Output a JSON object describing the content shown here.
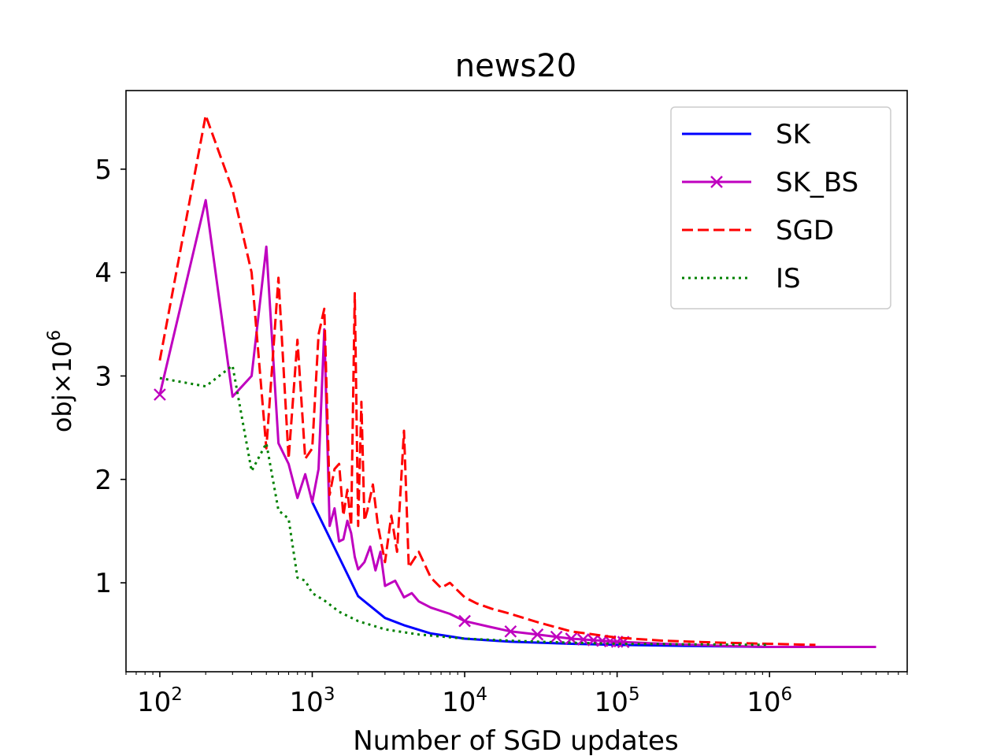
{
  "chart_data": {
    "type": "line",
    "title": "news20",
    "xlabel": "Number of SGD updates",
    "ylabel": "obj×10",
    "ylabel_exponent": "6",
    "xscale": "log",
    "xlim": [
      60,
      8000000
    ],
    "ylim": [
      0.14,
      5.76
    ],
    "xticks": [
      {
        "value": 100,
        "base": "10",
        "exp": "2"
      },
      {
        "value": 1000,
        "base": "10",
        "exp": "3"
      },
      {
        "value": 10000,
        "base": "10",
        "exp": "4"
      },
      {
        "value": 100000,
        "base": "10",
        "exp": "5"
      },
      {
        "value": 1000000,
        "base": "10",
        "exp": "6"
      }
    ],
    "yticks": [
      {
        "value": 1,
        "label": "1"
      },
      {
        "value": 2,
        "label": "2"
      },
      {
        "value": 3,
        "label": "3"
      },
      {
        "value": 4,
        "label": "4"
      },
      {
        "value": 5,
        "label": "5"
      }
    ],
    "legend_position": "top-right",
    "series": [
      {
        "name": "SK",
        "color": "#0000ff",
        "style": "solid",
        "marker": "none",
        "x": [
          1000,
          2000,
          3000,
          4000,
          6000,
          10000,
          20000,
          50000,
          100000,
          300000,
          1000000,
          5000000
        ],
        "y": [
          1.78,
          0.87,
          0.66,
          0.59,
          0.51,
          0.46,
          0.43,
          0.41,
          0.4,
          0.39,
          0.38,
          0.38
        ]
      },
      {
        "name": "SK_BS",
        "color": "#bf00bf",
        "style": "solid",
        "marker": "x",
        "marker_x": [
          100,
          10000,
          20000,
          30000,
          40000,
          50000,
          60000,
          70000,
          80000,
          90000,
          100000,
          110000
        ],
        "x": [
          100,
          200,
          300,
          400,
          500,
          600,
          700,
          800,
          900,
          1000,
          1100,
          1200,
          1300,
          1400,
          1500,
          1600,
          1700,
          1800,
          1900,
          2000,
          2200,
          2400,
          2600,
          2800,
          3000,
          3500,
          4000,
          4500,
          5000,
          6000,
          8000,
          10000,
          15000,
          20000,
          30000,
          50000,
          100000,
          200000,
          500000,
          1000000,
          2000000,
          5000000
        ],
        "y": [
          2.82,
          4.7,
          2.8,
          3.0,
          4.25,
          2.35,
          2.15,
          1.82,
          2.05,
          1.78,
          2.1,
          3.45,
          1.55,
          1.72,
          1.4,
          1.42,
          1.6,
          1.48,
          1.25,
          1.13,
          1.2,
          1.35,
          1.12,
          1.3,
          0.97,
          1.02,
          0.86,
          0.9,
          0.82,
          0.76,
          0.7,
          0.63,
          0.57,
          0.53,
          0.5,
          0.46,
          0.43,
          0.41,
          0.39,
          0.38,
          0.38,
          0.38
        ]
      },
      {
        "name": "SGD",
        "color": "#ff0000",
        "style": "dashed",
        "marker": "none",
        "x": [
          100,
          200,
          300,
          400,
          500,
          600,
          700,
          800,
          900,
          1000,
          1100,
          1200,
          1300,
          1400,
          1500,
          1600,
          1700,
          1800,
          1900,
          2000,
          2100,
          2200,
          2300,
          2500,
          2700,
          3000,
          3300,
          3600,
          4000,
          4300,
          5000,
          6000,
          7000,
          8000,
          10000,
          12000,
          15000,
          20000,
          30000,
          50000,
          100000,
          200000,
          500000,
          2000000
        ],
        "y": [
          3.15,
          5.52,
          4.8,
          4.0,
          2.3,
          3.95,
          2.2,
          3.35,
          2.2,
          2.3,
          3.4,
          3.65,
          1.85,
          2.1,
          2.15,
          1.65,
          1.9,
          1.55,
          3.8,
          1.55,
          2.75,
          1.6,
          1.7,
          1.95,
          1.55,
          1.2,
          1.65,
          1.3,
          2.47,
          1.15,
          1.3,
          1.05,
          0.95,
          1.0,
          0.86,
          0.8,
          0.75,
          0.7,
          0.62,
          0.53,
          0.47,
          0.44,
          0.42,
          0.4
        ]
      },
      {
        "name": "IS",
        "color": "#008000",
        "style": "dotted",
        "marker": "none",
        "x": [
          100,
          200,
          300,
          400,
          500,
          600,
          700,
          800,
          900,
          1000,
          1200,
          1500,
          2000,
          3000,
          5000,
          10000,
          20000,
          50000,
          100000,
          1000000
        ],
        "y": [
          2.98,
          2.9,
          3.1,
          2.08,
          2.35,
          1.7,
          1.62,
          1.05,
          1.02,
          0.9,
          0.83,
          0.72,
          0.63,
          0.55,
          0.5,
          0.46,
          0.44,
          0.42,
          0.41,
          0.4
        ]
      }
    ]
  }
}
